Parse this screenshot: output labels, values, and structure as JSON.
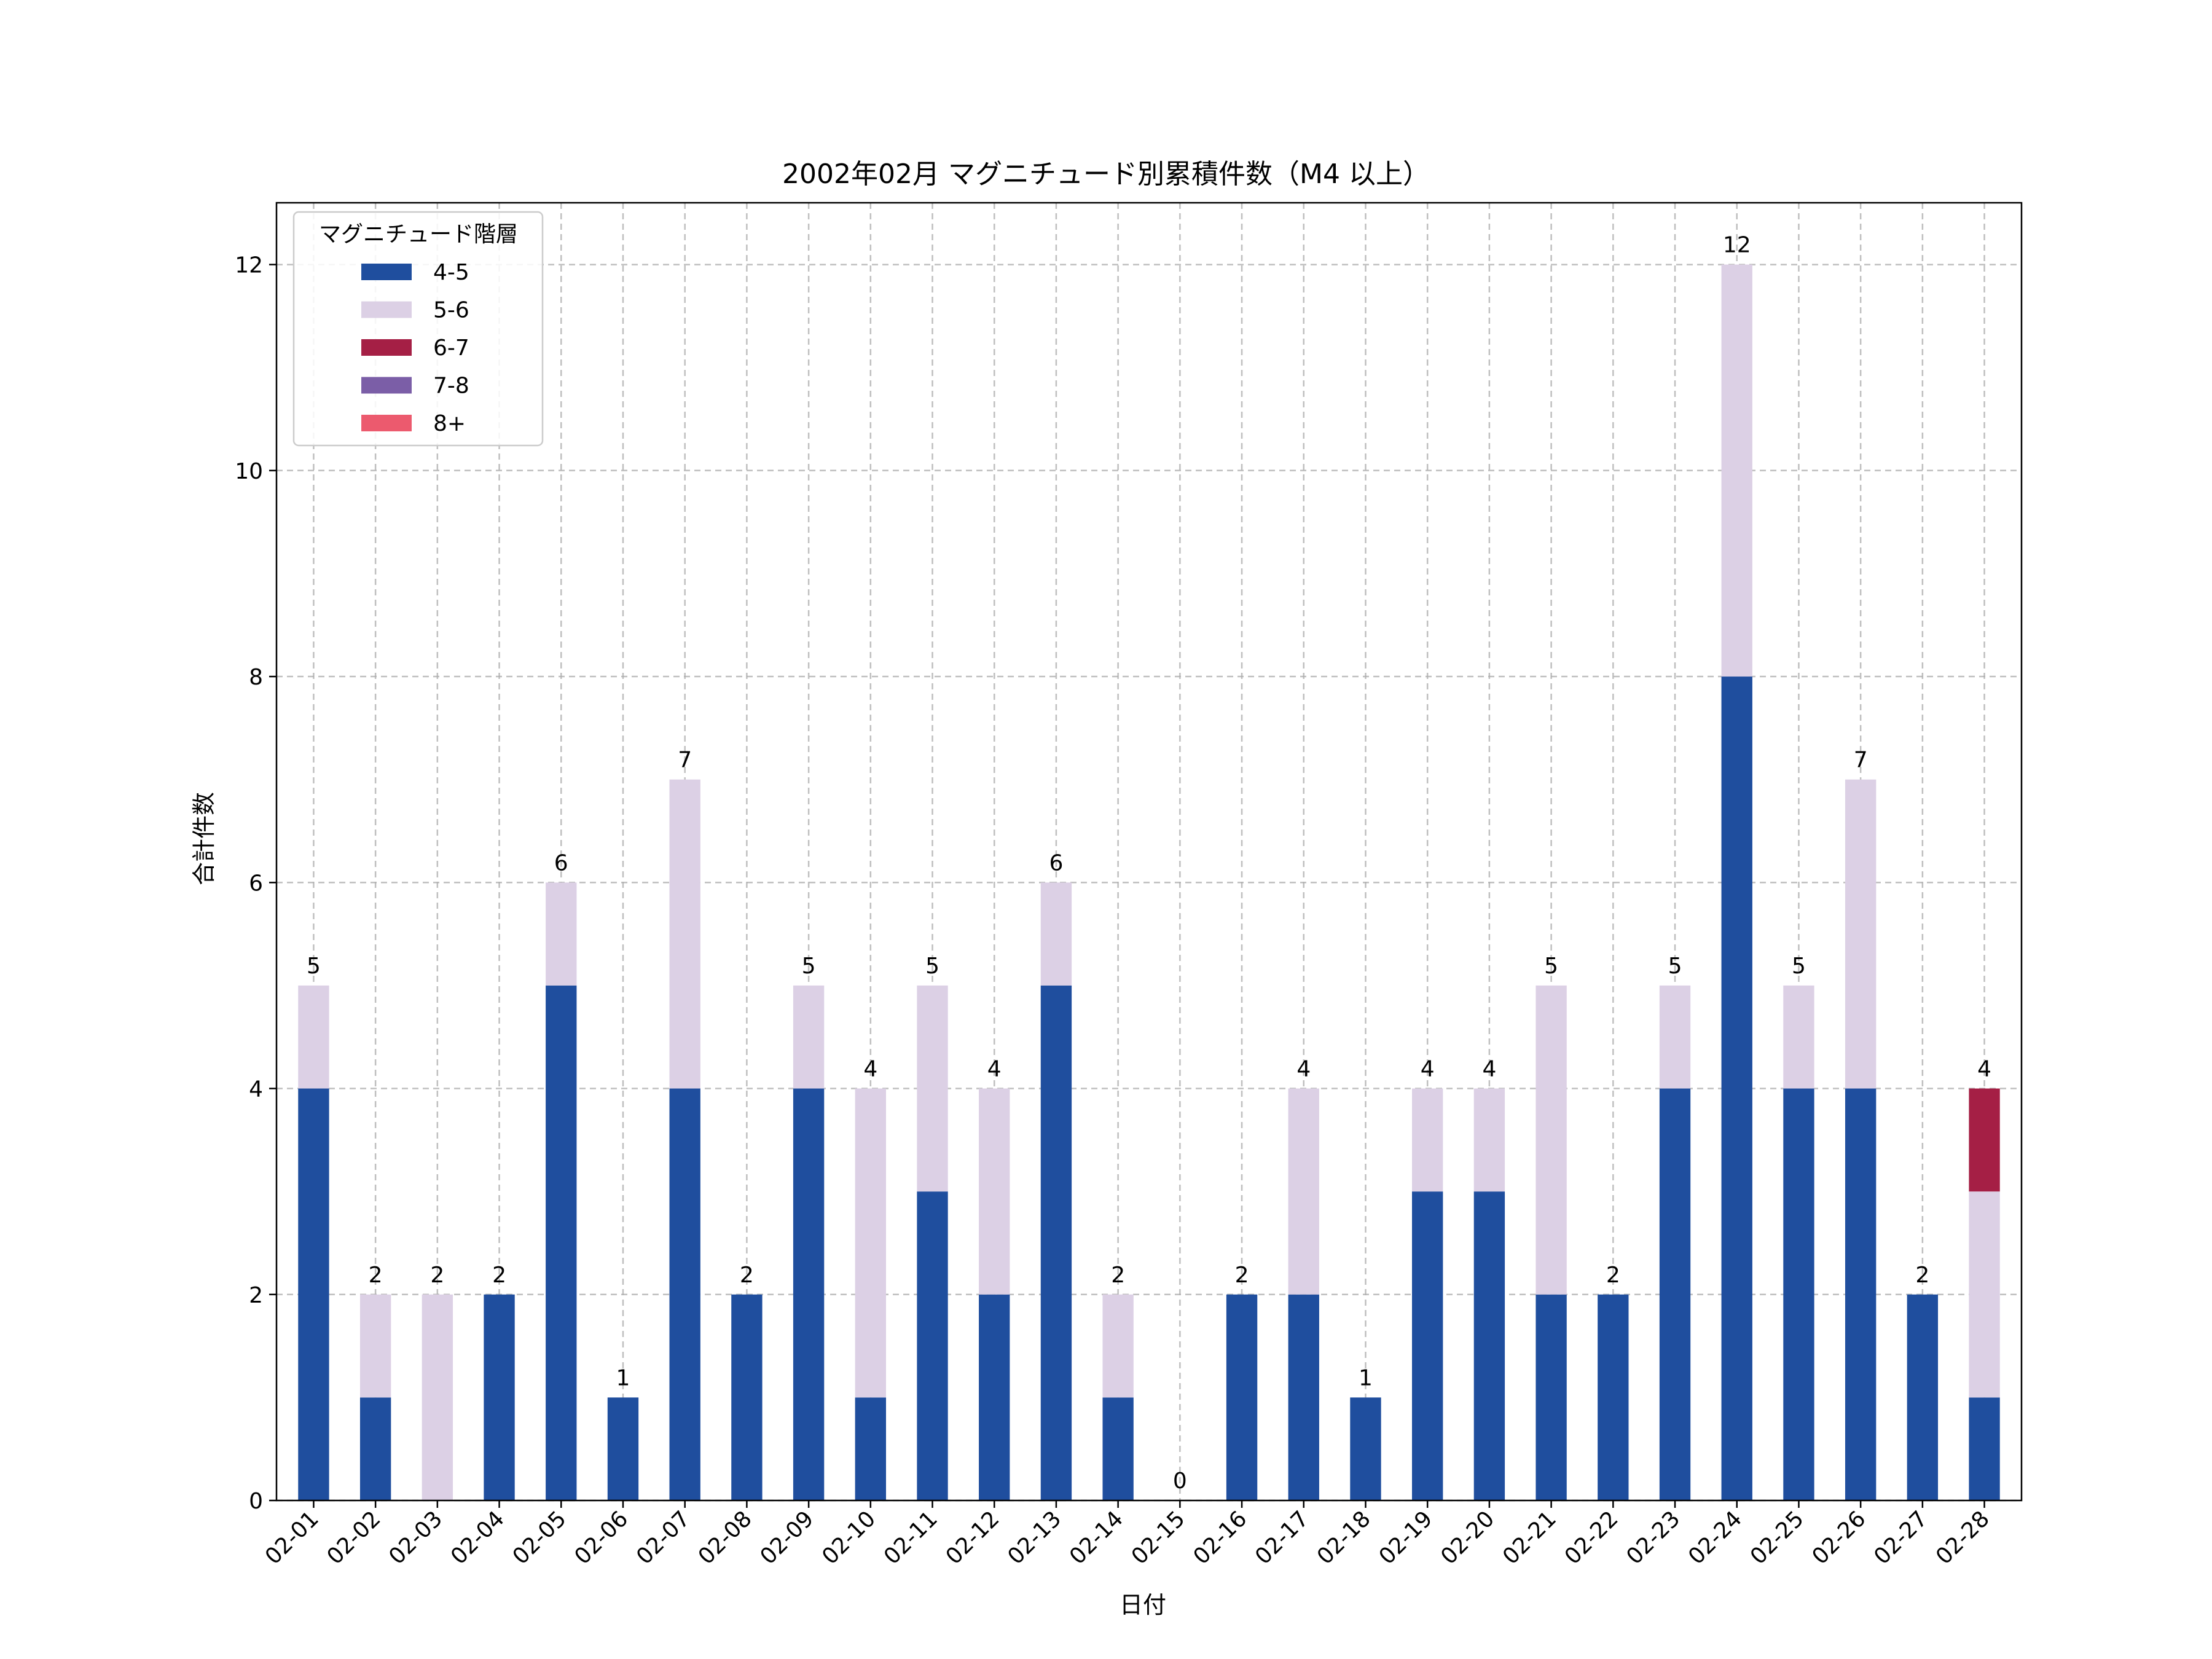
{
  "chart_data": {
    "type": "bar",
    "stacked": true,
    "title": "2002年02月 マグニチュード別累積件数（M4 以上）",
    "xlabel": "日付",
    "ylabel": "合計件数",
    "ylim": [
      0,
      12.6
    ],
    "yticks": [
      0,
      2,
      4,
      6,
      8,
      10,
      12
    ],
    "grid": true,
    "legend": {
      "title": "マグニチュード階層",
      "position": "top-left"
    },
    "categories": [
      "02-01",
      "02-02",
      "02-03",
      "02-04",
      "02-05",
      "02-06",
      "02-07",
      "02-08",
      "02-09",
      "02-10",
      "02-11",
      "02-12",
      "02-13",
      "02-14",
      "02-15",
      "02-16",
      "02-17",
      "02-18",
      "02-19",
      "02-20",
      "02-21",
      "02-22",
      "02-23",
      "02-24",
      "02-25",
      "02-26",
      "02-27",
      "02-28"
    ],
    "series": [
      {
        "name": "4-5",
        "color": "#1f4e9e",
        "values": [
          4,
          1,
          0,
          2,
          5,
          1,
          4,
          2,
          4,
          1,
          3,
          2,
          5,
          1,
          0,
          2,
          2,
          1,
          3,
          3,
          2,
          2,
          4,
          8,
          4,
          4,
          2,
          1
        ]
      },
      {
        "name": "5-6",
        "color": "#dcd0e5",
        "values": [
          1,
          1,
          2,
          0,
          1,
          0,
          3,
          0,
          1,
          3,
          2,
          2,
          1,
          1,
          0,
          0,
          2,
          0,
          1,
          1,
          3,
          0,
          1,
          4,
          1,
          3,
          0,
          2
        ]
      },
      {
        "name": "6-7",
        "color": "#a51f45",
        "values": [
          0,
          0,
          0,
          0,
          0,
          0,
          0,
          0,
          0,
          0,
          0,
          0,
          0,
          0,
          0,
          0,
          0,
          0,
          0,
          0,
          0,
          0,
          0,
          0,
          0,
          0,
          0,
          1
        ]
      },
      {
        "name": "7-8",
        "color": "#7b5ea7",
        "values": [
          0,
          0,
          0,
          0,
          0,
          0,
          0,
          0,
          0,
          0,
          0,
          0,
          0,
          0,
          0,
          0,
          0,
          0,
          0,
          0,
          0,
          0,
          0,
          0,
          0,
          0,
          0,
          0
        ]
      },
      {
        "name": "8+",
        "color": "#ec5a6e",
        "values": [
          0,
          0,
          0,
          0,
          0,
          0,
          0,
          0,
          0,
          0,
          0,
          0,
          0,
          0,
          0,
          0,
          0,
          0,
          0,
          0,
          0,
          0,
          0,
          0,
          0,
          0,
          0,
          0
        ]
      }
    ],
    "totals": [
      5,
      2,
      2,
      2,
      6,
      1,
      7,
      2,
      5,
      4,
      5,
      4,
      6,
      2,
      0,
      2,
      4,
      1,
      4,
      4,
      5,
      2,
      5,
      12,
      5,
      7,
      2,
      4
    ]
  }
}
